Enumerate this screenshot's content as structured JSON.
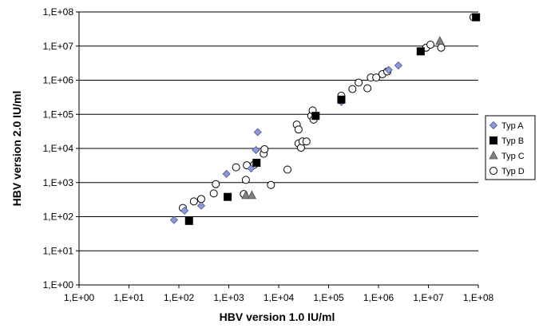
{
  "chart_data": {
    "type": "scatter",
    "title": "",
    "xlabel": "HBV version 1.0 IU/ml",
    "ylabel": "HBV version 2.0 IU/ml",
    "x_scale": "log",
    "y_scale": "log",
    "xlim": [
      1,
      100000000
    ],
    "ylim": [
      1,
      100000000
    ],
    "x_ticks": [
      1,
      10,
      100,
      1000,
      10000,
      100000,
      1000000,
      10000000,
      100000000
    ],
    "y_ticks": [
      1,
      10,
      100,
      1000,
      10000,
      100000,
      1000000,
      10000000,
      100000000
    ],
    "x_tick_labels": [
      "1,E+00",
      "1,E+01",
      "1,E+02",
      "1,E+03",
      "1,E+04",
      "1,E+05",
      "1,E+06",
      "1,E+07",
      "1,E+08"
    ],
    "y_tick_labels": [
      "1,E+00",
      "1,E+01",
      "1,E+02",
      "1,E+03",
      "1,E+04",
      "1,E+05",
      "1,E+06",
      "1,E+07",
      "1,E+08"
    ],
    "grid": "horizontal",
    "legend_position": "right",
    "series": [
      {
        "name": "Typ A",
        "marker": "diamond",
        "color": "#8E9AD6",
        "points": [
          [
            80,
            80
          ],
          [
            130,
            150
          ],
          [
            280,
            210
          ],
          [
            900,
            1800
          ],
          [
            2800,
            2600
          ],
          [
            3500,
            9000
          ],
          [
            3800,
            30000
          ],
          [
            180000,
            230000
          ],
          [
            1600000,
            2000000
          ],
          [
            2500000,
            2700000
          ]
        ]
      },
      {
        "name": "Typ B",
        "marker": "square",
        "color": "#000000",
        "points": [
          [
            160,
            75
          ],
          [
            950,
            380
          ],
          [
            3600,
            3800
          ],
          [
            55000,
            90000
          ],
          [
            180000,
            270000
          ],
          [
            7000000,
            7000000
          ],
          [
            90000000,
            70000000
          ]
        ]
      },
      {
        "name": "Typ C",
        "marker": "triangle",
        "color": "#808080",
        "points": [
          [
            2200,
            420
          ],
          [
            2900,
            420
          ],
          [
            17000000,
            14000000
          ]
        ]
      },
      {
        "name": "Typ D",
        "marker": "circle",
        "color": "#ffffff",
        "points": [
          [
            120,
            180
          ],
          [
            200,
            280
          ],
          [
            280,
            330
          ],
          [
            500,
            480
          ],
          [
            550,
            900
          ],
          [
            1400,
            2800
          ],
          [
            2000,
            460
          ],
          [
            2200,
            1200
          ],
          [
            2300,
            3200
          ],
          [
            3200,
            3300
          ],
          [
            5000,
            7000
          ],
          [
            5200,
            9500
          ],
          [
            7000,
            850
          ],
          [
            15000,
            2400
          ],
          [
            23000,
            50000
          ],
          [
            25000,
            36000
          ],
          [
            25000,
            14000
          ],
          [
            28000,
            10500
          ],
          [
            30000,
            16000
          ],
          [
            36000,
            16000
          ],
          [
            45000,
            90000
          ],
          [
            48000,
            130000
          ],
          [
            50000,
            70000
          ],
          [
            180000,
            350000
          ],
          [
            300000,
            550000
          ],
          [
            400000,
            850000
          ],
          [
            600000,
            580000
          ],
          [
            700000,
            1200000
          ],
          [
            900000,
            1200000
          ],
          [
            1200000,
            1500000
          ],
          [
            1500000,
            1800000
          ],
          [
            9000000,
            9000000
          ],
          [
            11000000,
            11000000
          ],
          [
            18000000,
            9000000
          ],
          [
            80000000,
            70000000
          ]
        ]
      }
    ]
  }
}
